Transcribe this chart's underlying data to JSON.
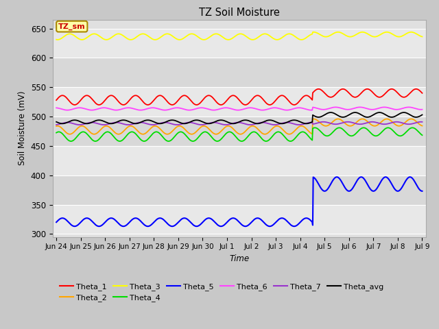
{
  "title": "TZ Soil Moisture",
  "xlabel": "Time",
  "ylabel": "Soil Moisture (mV)",
  "fig_bg_color": "#c8c8c8",
  "plot_bg_color": "#e0e0e0",
  "band_colors": [
    "#e8e8e8",
    "#d8d8d8"
  ],
  "ylim": [
    295,
    665
  ],
  "legend_colors": {
    "Theta_1": "#ff0000",
    "Theta_2": "#ffa500",
    "Theta_3": "#ffff00",
    "Theta_4": "#00dd00",
    "Theta_5": "#0000ff",
    "Theta_6": "#ff44ff",
    "Theta_7": "#9933cc",
    "Theta_avg": "#000000"
  },
  "annotation_label": "TZ_sm",
  "annotation_bg": "#ffffaa",
  "annotation_text_color": "#cc0000",
  "annotation_border_color": "#aa8800",
  "x_tick_labels": [
    "Jun 24",
    "Jun 25",
    "Jun 26",
    "Jun 27",
    "Jun 28",
    "Jun 29",
    "Jun 30",
    "Jul 1",
    "Jul 2",
    "Jul 3",
    "Jul 4",
    "Jul 5",
    "Jul 6",
    "Jul 7",
    "Jul 8",
    "Jul 9"
  ],
  "y_ticks": [
    300,
    350,
    400,
    450,
    500,
    550,
    600,
    650
  ],
  "grid_color": "#ffffff",
  "jump_day": 10.5
}
